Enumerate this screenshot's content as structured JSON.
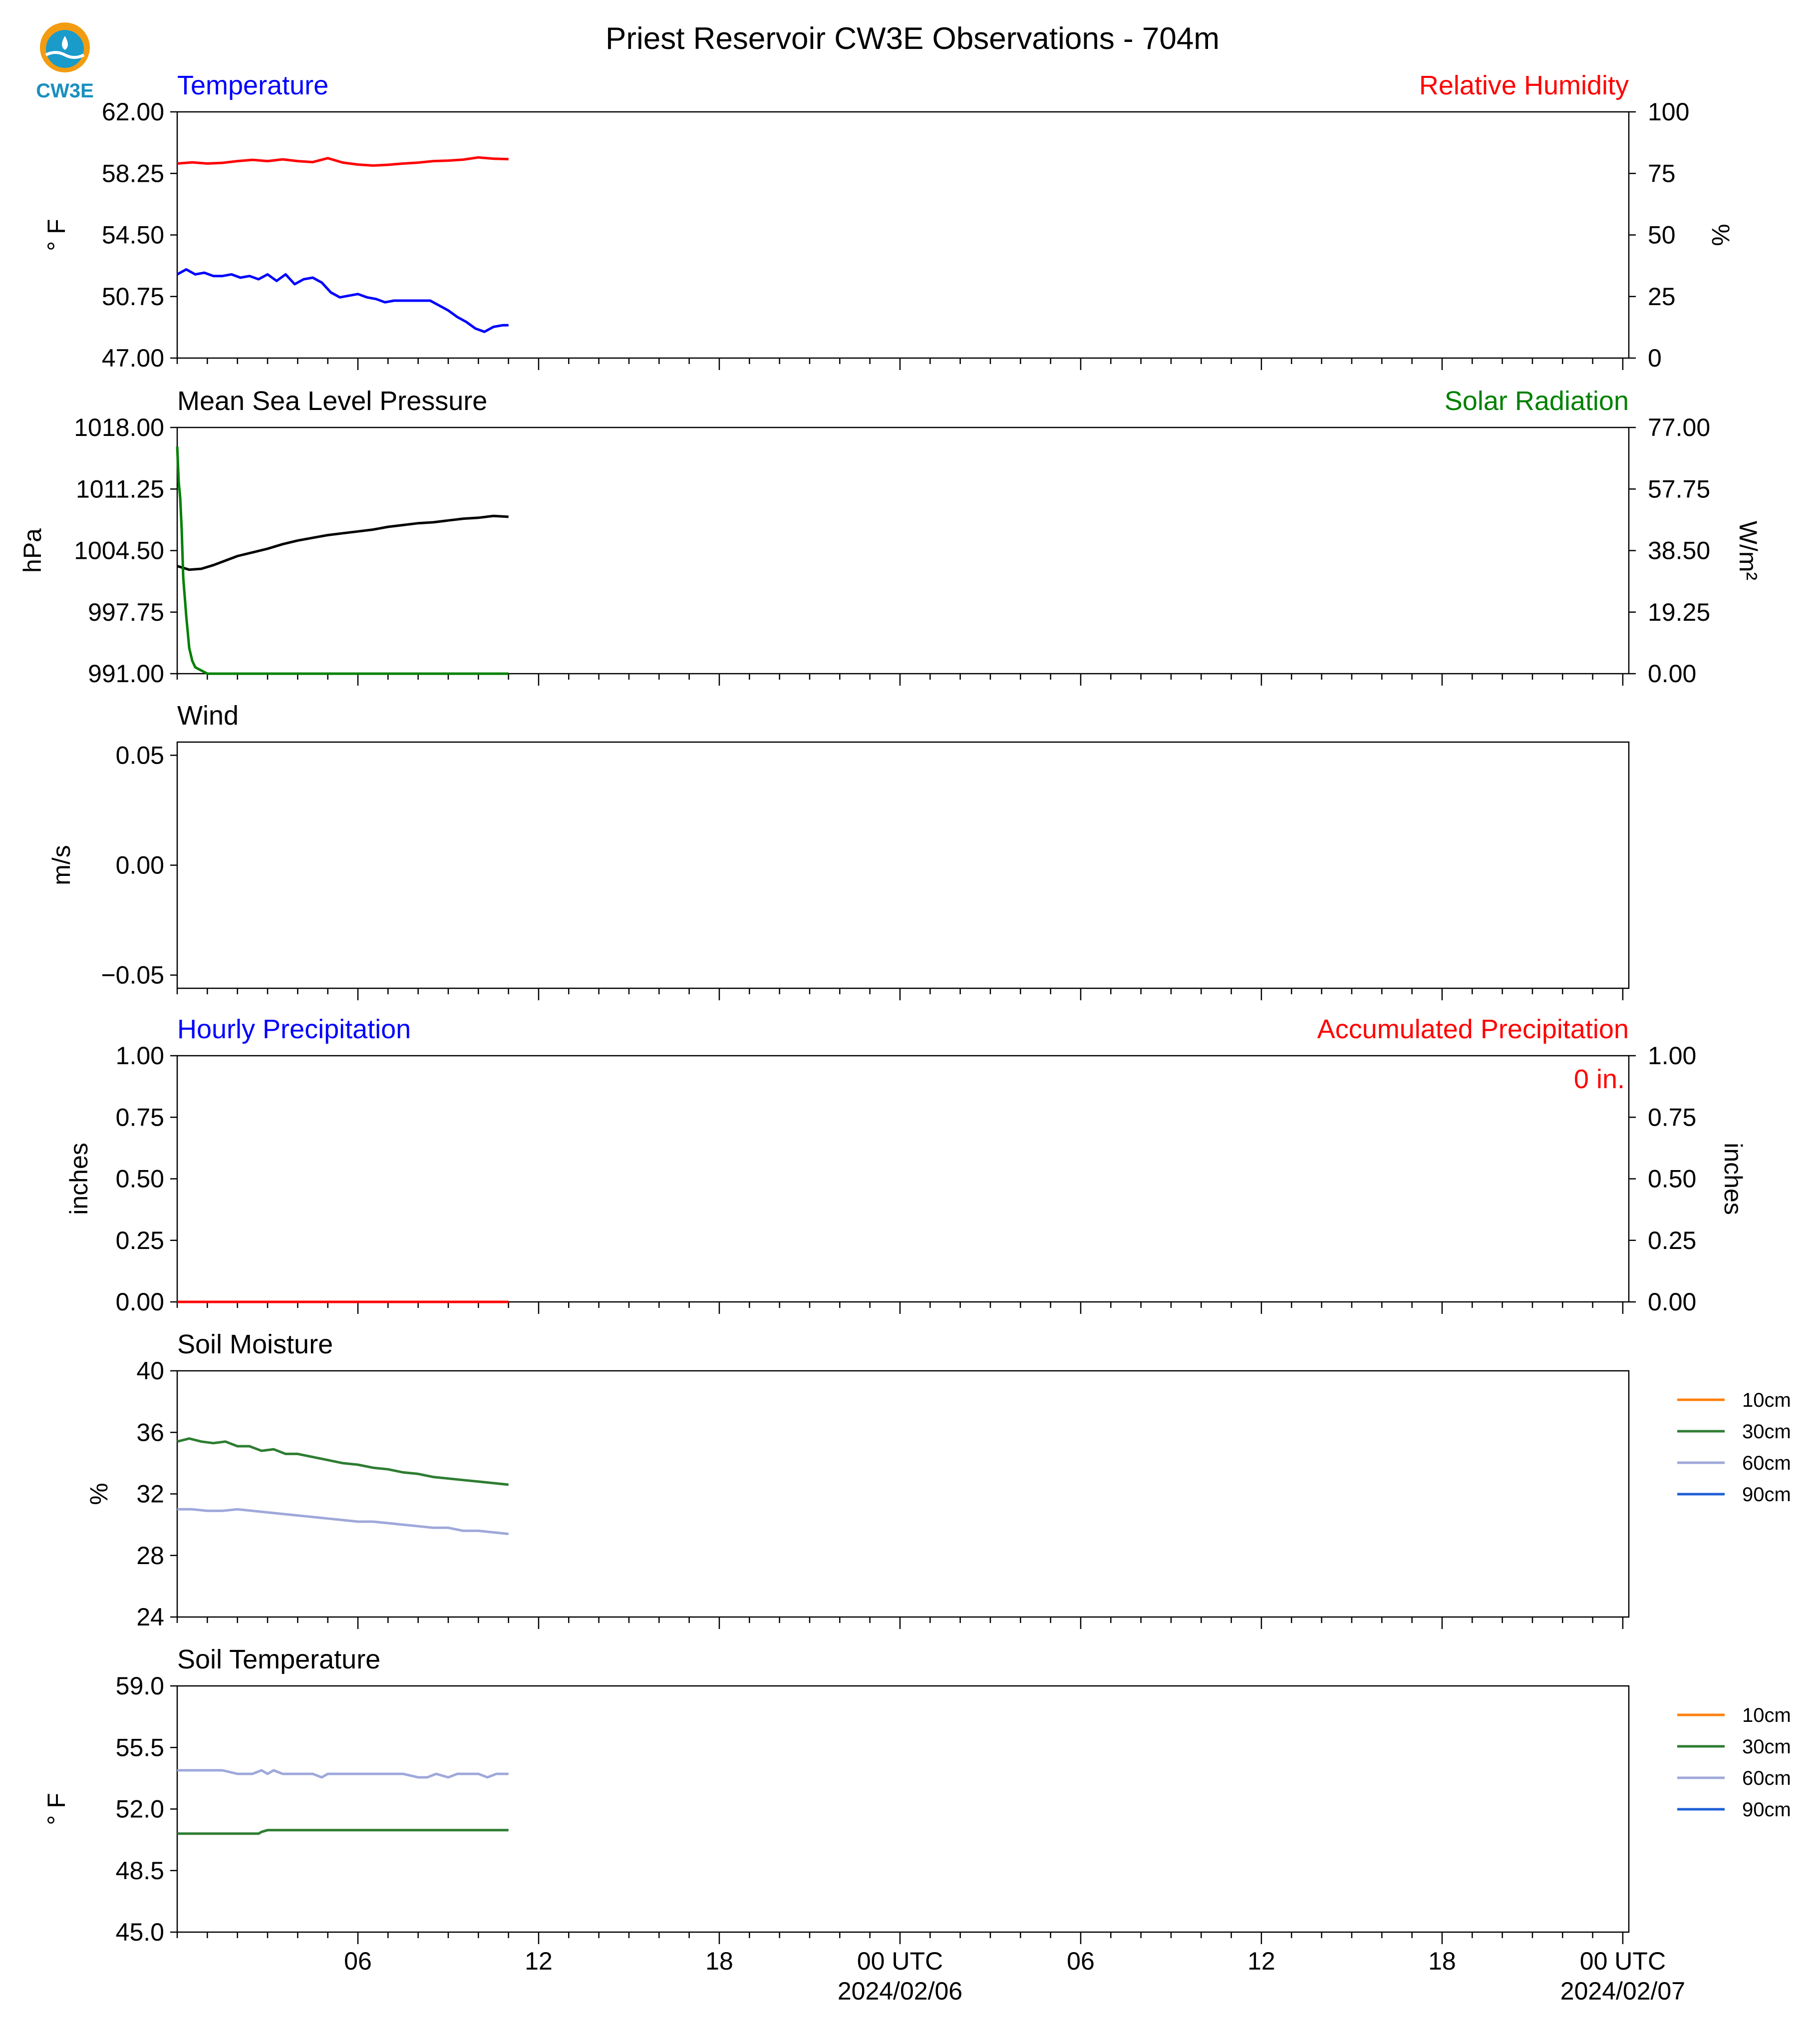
{
  "figure": {
    "title": "Priest Reservoir CW3E Observations - 704m",
    "logo_text": "CW3E"
  },
  "x_axis": {
    "major_labels": [
      {
        "hour": 6,
        "text": "06",
        "date": ""
      },
      {
        "hour": 12,
        "text": "12",
        "date": ""
      },
      {
        "hour": 18,
        "text": "18",
        "date": ""
      },
      {
        "hour": 24,
        "text": "00 UTC",
        "date": "2024/02/06"
      },
      {
        "hour": 30,
        "text": "06",
        "date": ""
      },
      {
        "hour": 36,
        "text": "12",
        "date": ""
      },
      {
        "hour": 42,
        "text": "18",
        "date": ""
      },
      {
        "hour": 48,
        "text": "00 UTC",
        "date": "2024/02/07"
      }
    ]
  },
  "colors": {
    "blue": "#0000ff",
    "red": "#ff0000",
    "green": "#008000",
    "black": "#000000",
    "soil10": "#ff7f0e",
    "soil30": "#2e7d32",
    "soil60": "#9fa8da",
    "soil90": "#1f5fd6"
  },
  "chart_data": [
    {
      "id": "temperature",
      "type": "line",
      "left_title": "Temperature",
      "right_title": "Relative Humidity",
      "ylabel": "° F",
      "ylabel_right": "%",
      "ylim": [
        47.0,
        62.0
      ],
      "ylim_right": [
        0,
        100
      ],
      "yticks": [
        "62.00",
        "58.25",
        "54.50",
        "50.75",
        "47.00"
      ],
      "yticks_right": [
        "100",
        "75",
        "50",
        "25",
        "0"
      ],
      "series": [
        {
          "name": "",
          "axis": "left",
          "color": "blue",
          "x": [
            0,
            0.3,
            0.6,
            0.9,
            1.2,
            1.5,
            1.8,
            2.1,
            2.4,
            2.7,
            3.0,
            3.3,
            3.6,
            3.9,
            4.2,
            4.5,
            4.8,
            5.1,
            5.4,
            5.7,
            6.0,
            6.3,
            6.6,
            6.9,
            7.2,
            7.5,
            7.8,
            8.1,
            8.4,
            8.7,
            9.0,
            9.3,
            9.6,
            9.9,
            10.2,
            10.5,
            10.8,
            11.0
          ],
          "y": [
            52.1,
            52.4,
            52.1,
            52.2,
            52.0,
            52.0,
            52.1,
            51.9,
            52.0,
            51.8,
            52.1,
            51.7,
            52.1,
            51.5,
            51.8,
            51.9,
            51.6,
            51.0,
            50.7,
            50.8,
            50.9,
            50.7,
            50.6,
            50.4,
            50.5,
            50.5,
            50.5,
            50.5,
            50.5,
            50.2,
            49.9,
            49.5,
            49.2,
            48.8,
            48.6,
            48.9,
            49.0,
            49.0
          ]
        },
        {
          "name": "",
          "axis": "right",
          "color": "red",
          "x": [
            0,
            0.5,
            1.0,
            1.5,
            2.0,
            2.5,
            3.0,
            3.5,
            4.0,
            4.5,
            5.0,
            5.5,
            6.0,
            6.5,
            7.0,
            7.5,
            8.0,
            8.5,
            9.0,
            9.5,
            10.0,
            10.5,
            11.0
          ],
          "y": [
            79,
            79.5,
            79,
            79.3,
            80,
            80.5,
            80,
            80.7,
            80,
            79.6,
            81.2,
            79.4,
            78.6,
            78.2,
            78.5,
            79,
            79.4,
            80,
            80.2,
            80.6,
            81.5,
            81,
            80.8
          ]
        }
      ]
    },
    {
      "id": "pressure",
      "type": "line",
      "left_title": "Mean Sea Level Pressure",
      "right_title": "Solar Radiation",
      "ylabel": "hPa",
      "ylabel_right": "W/m²",
      "ylim": [
        991.0,
        1018.0
      ],
      "ylim_right": [
        0,
        77.0
      ],
      "yticks": [
        "1018.00",
        "1011.25",
        "1004.50",
        "997.75",
        "991.00"
      ],
      "yticks_right": [
        "77.00",
        "57.75",
        "38.50",
        "19.25",
        "0.00"
      ],
      "series": [
        {
          "name": "",
          "axis": "left",
          "color": "black",
          "x": [
            0,
            0.4,
            0.8,
            1.2,
            1.6,
            2.0,
            2.5,
            3.0,
            3.5,
            4.0,
            4.5,
            5.0,
            5.5,
            6.0,
            6.5,
            7.0,
            7.5,
            8.0,
            8.5,
            9.0,
            9.5,
            10.0,
            10.5,
            11.0
          ],
          "y": [
            1002.8,
            1002.4,
            1002.5,
            1002.9,
            1003.4,
            1003.9,
            1004.3,
            1004.7,
            1005.2,
            1005.6,
            1005.9,
            1006.2,
            1006.4,
            1006.6,
            1006.8,
            1007.1,
            1007.3,
            1007.5,
            1007.6,
            1007.8,
            1008.0,
            1008.1,
            1008.3,
            1008.2
          ]
        },
        {
          "name": "",
          "axis": "right",
          "color": "green",
          "x": [
            0,
            0.05,
            0.1,
            0.15,
            0.2,
            0.3,
            0.4,
            0.5,
            0.6,
            0.7,
            0.8,
            1.0,
            2.0,
            4.0,
            6.0,
            8.0,
            10.0,
            11.0
          ],
          "y": [
            71,
            60,
            55,
            45,
            30,
            18,
            8,
            4,
            2,
            1.5,
            1,
            0,
            0,
            0,
            0,
            0,
            0,
            0
          ]
        }
      ]
    },
    {
      "id": "wind",
      "type": "line",
      "left_title": "Wind",
      "ylabel": "m/s",
      "ylim": [
        -0.056,
        0.056
      ],
      "yticks": [
        "0.05",
        "0.00",
        "−0.05"
      ],
      "series": []
    },
    {
      "id": "precip",
      "type": "line",
      "left_title": "Hourly Precipitation",
      "right_title": "Accumulated Precipitation",
      "ylabel": "inches",
      "ylabel_right": "inches",
      "ylim": [
        0,
        1.0
      ],
      "ylim_right": [
        0,
        1.0
      ],
      "yticks": [
        "1.00",
        "0.75",
        "0.50",
        "0.25",
        "0.00"
      ],
      "yticks_right": [
        "1.00",
        "0.75",
        "0.50",
        "0.25",
        "0.00"
      ],
      "annotation": "0 in.",
      "series": [
        {
          "name": "",
          "axis": "left",
          "color": "red",
          "x": [
            0,
            11.0
          ],
          "y": [
            0,
            0
          ]
        }
      ]
    },
    {
      "id": "soil_moisture",
      "type": "line",
      "left_title": "Soil Moisture",
      "ylabel": "%",
      "ylim": [
        24,
        40
      ],
      "yticks": [
        "40",
        "36",
        "32",
        "28",
        "24"
      ],
      "legend": [
        "10cm",
        "30cm",
        "60cm",
        "90cm"
      ],
      "series": [
        {
          "name": "30cm",
          "axis": "left",
          "color": "soil30",
          "x": [
            0,
            0.4,
            0.8,
            1.2,
            1.6,
            2.0,
            2.4,
            2.8,
            3.2,
            3.6,
            4.0,
            4.5,
            5.0,
            5.5,
            6.0,
            6.5,
            7.0,
            7.5,
            8.0,
            8.5,
            9.0,
            9.5,
            10.0,
            10.5,
            11.0
          ],
          "y": [
            35.4,
            35.6,
            35.4,
            35.3,
            35.4,
            35.1,
            35.1,
            34.8,
            34.9,
            34.6,
            34.6,
            34.4,
            34.2,
            34.0,
            33.9,
            33.7,
            33.6,
            33.4,
            33.3,
            33.1,
            33.0,
            32.9,
            32.8,
            32.7,
            32.6
          ]
        },
        {
          "name": "60cm",
          "axis": "left",
          "color": "soil60",
          "x": [
            0,
            0.5,
            1.0,
            1.5,
            2.0,
            2.5,
            3.0,
            3.5,
            4.0,
            4.5,
            5.0,
            5.5,
            6.0,
            6.5,
            7.0,
            7.5,
            8.0,
            8.5,
            9.0,
            9.5,
            10.0,
            10.5,
            11.0
          ],
          "y": [
            31.0,
            31.0,
            30.9,
            30.9,
            31.0,
            30.9,
            30.8,
            30.7,
            30.6,
            30.5,
            30.4,
            30.3,
            30.2,
            30.2,
            30.1,
            30.0,
            29.9,
            29.8,
            29.8,
            29.6,
            29.6,
            29.5,
            29.4
          ]
        }
      ]
    },
    {
      "id": "soil_temperature",
      "type": "line",
      "left_title": "Soil Temperature",
      "ylabel": "° F",
      "ylim": [
        45.0,
        59.0
      ],
      "yticks": [
        "59.0",
        "55.5",
        "52.0",
        "48.5",
        "45.0"
      ],
      "legend": [
        "10cm",
        "30cm",
        "60cm",
        "90cm"
      ],
      "series": [
        {
          "name": "60cm",
          "axis": "left",
          "color": "soil60",
          "x": [
            0,
            0.5,
            1.0,
            1.5,
            2.0,
            2.5,
            2.8,
            3.0,
            3.2,
            3.5,
            4.0,
            4.5,
            4.8,
            5.0,
            5.5,
            6.0,
            6.5,
            7.0,
            7.5,
            8.0,
            8.3,
            8.6,
            9.0,
            9.3,
            9.6,
            10.0,
            10.3,
            10.6,
            11.0
          ],
          "y": [
            54.2,
            54.2,
            54.2,
            54.2,
            54.0,
            54.0,
            54.2,
            54.0,
            54.2,
            54.0,
            54.0,
            54.0,
            53.8,
            54.0,
            54.0,
            54.0,
            54.0,
            54.0,
            54.0,
            53.8,
            53.8,
            54.0,
            53.8,
            54.0,
            54.0,
            54.0,
            53.8,
            54.0,
            54.0
          ]
        },
        {
          "name": "30cm",
          "axis": "left",
          "color": "soil30",
          "x": [
            0,
            1.0,
            2.0,
            2.7,
            2.8,
            3.0,
            4.0,
            6.0,
            8.0,
            10.0,
            11.0
          ],
          "y": [
            50.6,
            50.6,
            50.6,
            50.6,
            50.7,
            50.8,
            50.8,
            50.8,
            50.8,
            50.8,
            50.8
          ]
        }
      ]
    }
  ]
}
